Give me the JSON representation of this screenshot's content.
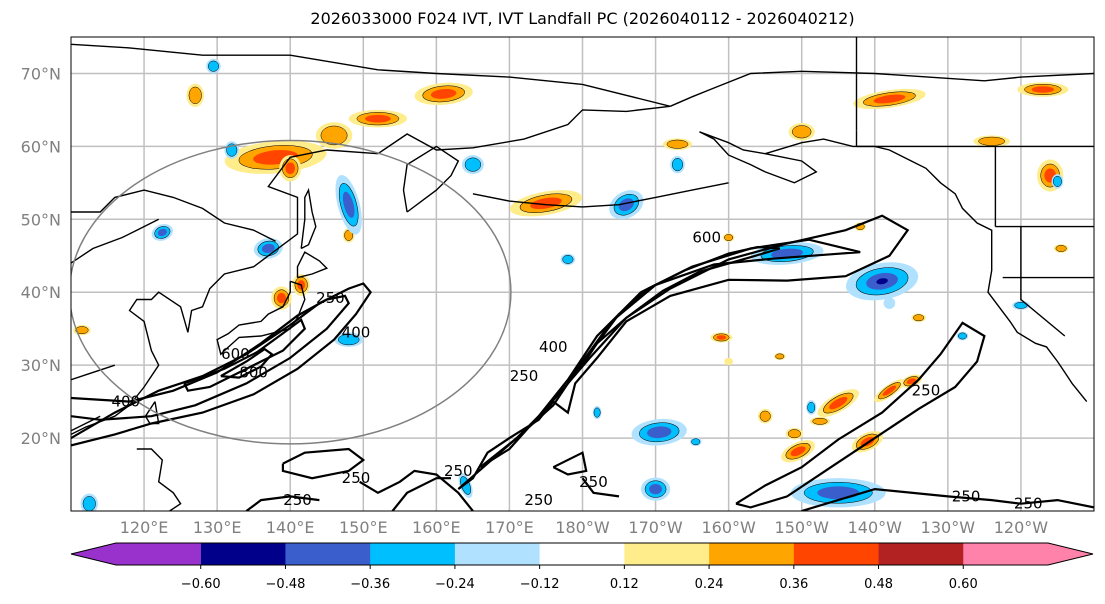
{
  "chart_data": {
    "type": "heatmap",
    "title": "2026033000 F024 IVT, IVT Landfall PC (2026040112 - 2026040212)",
    "xlabel": "",
    "ylabel": "",
    "xlim_lon": [
      110,
      250
    ],
    "ylim_lat": [
      10,
      75
    ],
    "grid": true,
    "x_ticks": [
      "120°E",
      "130°E",
      "140°E",
      "150°E",
      "160°E",
      "170°E",
      "180°W",
      "170°W",
      "160°W",
      "150°W",
      "140°W",
      "130°W",
      "120°W"
    ],
    "x_tick_lons": [
      120,
      130,
      140,
      150,
      160,
      170,
      180,
      190,
      200,
      210,
      220,
      230,
      240
    ],
    "y_ticks": [
      "70°N",
      "60°N",
      "50°N",
      "40°N",
      "30°N",
      "20°N"
    ],
    "y_tick_lats": [
      70,
      60,
      50,
      40,
      30,
      20
    ],
    "colorbar": {
      "orientation": "horizontal",
      "extend": "both",
      "levels": [
        -0.6,
        -0.48,
        -0.36,
        -0.24,
        -0.12,
        0.12,
        0.24,
        0.36,
        0.48,
        0.6
      ],
      "tick_labels": [
        "−0.60",
        "−0.48",
        "−0.36",
        "−0.24",
        "−0.12",
        "0.12",
        "0.24",
        "0.36",
        "0.48",
        "0.60"
      ],
      "colors": [
        "#9932cc",
        "#00008b",
        "#3a5fcd",
        "#00bfff",
        "#b0e2ff",
        "#ffffff",
        "#ffec8b",
        "#ffa500",
        "#ff4500",
        "#b22222",
        "#ff82ab"
      ]
    },
    "ivt_contours": {
      "levels": [
        250,
        400,
        600,
        800
      ],
      "labels": [
        {
          "text": "250",
          "lon": 145.5,
          "lat": 39.2
        },
        {
          "text": "400",
          "lon": 149,
          "lat": 34.5
        },
        {
          "text": "600",
          "lon": 132.5,
          "lat": 31.5
        },
        {
          "text": "800",
          "lon": 135,
          "lat": 29
        },
        {
          "text": "400",
          "lon": 117.5,
          "lat": 25
        },
        {
          "text": "250",
          "lon": 172,
          "lat": 28.5
        },
        {
          "text": "400",
          "lon": 176,
          "lat": 32.5
        },
        {
          "text": "600",
          "lon": 197,
          "lat": 47.5
        },
        {
          "text": "250",
          "lon": 149,
          "lat": 14.5
        },
        {
          "text": "250",
          "lon": 141,
          "lat": 11.5
        },
        {
          "text": "250",
          "lon": 163,
          "lat": 15.5
        },
        {
          "text": "250",
          "lon": 181.5,
          "lat": 14
        },
        {
          "text": "250",
          "lon": 174,
          "lat": 11.5
        },
        {
          "text": "250",
          "lon": 227,
          "lat": 26.5
        },
        {
          "text": "250",
          "lon": 232.5,
          "lat": 12
        },
        {
          "text": "250",
          "lon": 241,
          "lat": 11
        }
      ]
    },
    "landfall_circle": {
      "center_lon": 140,
      "center_lat": 40,
      "radius_deg": 25
    }
  }
}
